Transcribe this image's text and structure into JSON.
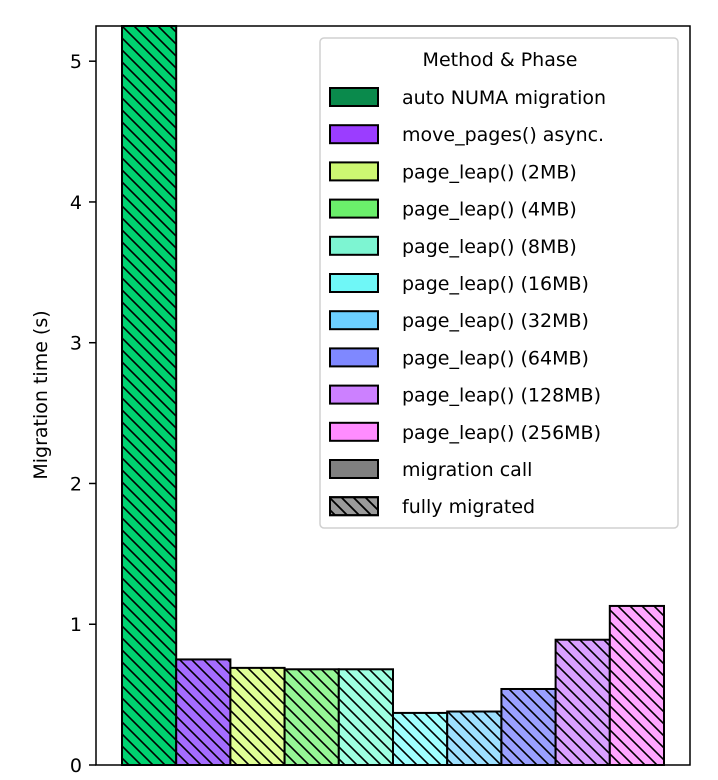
{
  "chart_data": {
    "type": "bar",
    "title": "",
    "xlabel": "",
    "ylabel": "Migration time (s)",
    "ylim": [
      0,
      5.25
    ],
    "yticks": [
      0,
      1,
      2,
      3,
      4,
      5
    ],
    "grid": false,
    "legend_placement": "top-right",
    "legend_title": "Method & Phase",
    "categories": [
      "auto NUMA migration",
      "move_pages() async.",
      "page_leap() (2MB)",
      "page_leap() (4MB)",
      "page_leap() (8MB)",
      "page_leap() (16MB)",
      "page_leap() (32MB)",
      "page_leap() (64MB)",
      "page_leap() (128MB)",
      "page_leap() (256MB)"
    ],
    "series": [
      {
        "name": "fully migrated",
        "values": [
          5.25,
          0.75,
          0.69,
          0.68,
          0.68,
          0.37,
          0.38,
          0.54,
          0.89,
          1.13
        ]
      }
    ],
    "colors": {
      "legend": [
        "#0a8a4c",
        "#9b3dff",
        "#cdf772",
        "#6bef6b",
        "#7df5d2",
        "#6ff7f7",
        "#6ccfff",
        "#7f88ff",
        "#cc80ff",
        "#ff8cff"
      ],
      "bars": [
        "#00d170",
        "#a46cff",
        "#e0ff96",
        "#96f796",
        "#9fffe2",
        "#a0ffff",
        "#9ee0ff",
        "#9aa0ff",
        "#d9a0ff",
        "#ffa6ff"
      ]
    },
    "legend_items": [
      {
        "label": "auto NUMA migration",
        "color": "#0a8a4c",
        "hatch": false
      },
      {
        "label": "move_pages() async.",
        "color": "#9b3dff",
        "hatch": false
      },
      {
        "label": "page_leap() (2MB)",
        "color": "#cdf772",
        "hatch": false
      },
      {
        "label": "page_leap() (4MB)",
        "color": "#6bef6b",
        "hatch": false
      },
      {
        "label": "page_leap() (8MB)",
        "color": "#7df5d2",
        "hatch": false
      },
      {
        "label": "page_leap() (16MB)",
        "color": "#6ff7f7",
        "hatch": false
      },
      {
        "label": "page_leap() (32MB)",
        "color": "#6ccfff",
        "hatch": false
      },
      {
        "label": "page_leap() (64MB)",
        "color": "#7f88ff",
        "hatch": false
      },
      {
        "label": "page_leap() (128MB)",
        "color": "#cc80ff",
        "hatch": false
      },
      {
        "label": "page_leap() (256MB)",
        "color": "#ff8cff",
        "hatch": false
      },
      {
        "label": "migration call",
        "color": "#808080",
        "hatch": false
      },
      {
        "label": "fully migrated",
        "color": "#9a9a9a",
        "hatch": true
      }
    ]
  }
}
